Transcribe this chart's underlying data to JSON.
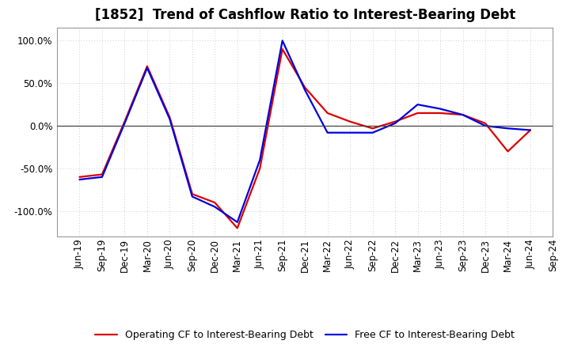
{
  "title": "[1852]  Trend of Cashflow Ratio to Interest-Bearing Debt",
  "x_labels": [
    "Jun-19",
    "Sep-19",
    "Dec-19",
    "Mar-20",
    "Jun-20",
    "Sep-20",
    "Dec-20",
    "Mar-21",
    "Jun-21",
    "Sep-21",
    "Dec-21",
    "Mar-22",
    "Jun-22",
    "Sep-22",
    "Dec-22",
    "Mar-23",
    "Jun-23",
    "Sep-23",
    "Dec-23",
    "Mar-24",
    "Jun-24",
    "Sep-24"
  ],
  "operating_cf": [
    -60,
    -57,
    5,
    70,
    10,
    -80,
    -90,
    -120,
    -50,
    90,
    45,
    15,
    5,
    -3,
    5,
    15,
    15,
    13,
    3,
    -30,
    -5,
    null
  ],
  "free_cf": [
    -63,
    -60,
    3,
    68,
    8,
    -83,
    -95,
    -113,
    -40,
    100,
    42,
    -8,
    -8,
    -8,
    3,
    25,
    20,
    13,
    0,
    -3,
    -5,
    null
  ],
  "operating_cf_color": "#dd0000",
  "free_cf_color": "#0000dd",
  "background_color": "#ffffff",
  "plot_bg_color": "#ffffff",
  "grid_color": "#bbbbbb",
  "ylim": [
    -130,
    115
  ],
  "yticks": [
    -100,
    -50,
    0,
    50,
    100
  ],
  "legend_labels": [
    "Operating CF to Interest-Bearing Debt",
    "Free CF to Interest-Bearing Debt"
  ],
  "line_width": 1.6,
  "title_fontsize": 12,
  "tick_fontsize": 8.5,
  "legend_fontsize": 9
}
